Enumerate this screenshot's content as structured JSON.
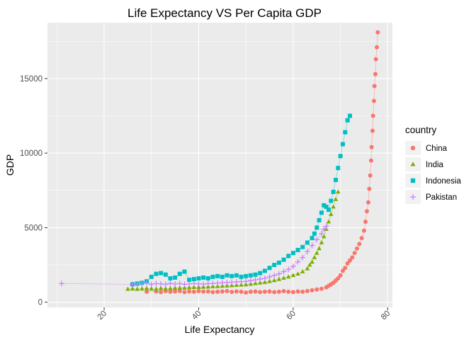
{
  "chart_data": {
    "type": "scatter",
    "title": "Life Expectancy VS Per Capita GDP",
    "xlabel": "Life Expectancy",
    "ylabel": "GDP",
    "xlim": [
      8,
      81
    ],
    "ylim": [
      -350,
      18750
    ],
    "x_ticks": [
      20,
      40,
      60,
      80
    ],
    "y_ticks": [
      0,
      5000,
      10000,
      15000
    ],
    "grid": true,
    "legend": {
      "title": "country",
      "position": "right"
    },
    "series": [
      {
        "name": "China",
        "color": "#F8766D",
        "shape": "circle",
        "points": [
          [
            29,
            700
          ],
          [
            31,
            720
          ],
          [
            32,
            680
          ],
          [
            33,
            740
          ],
          [
            34,
            700
          ],
          [
            35,
            720
          ],
          [
            36,
            750
          ],
          [
            37,
            680
          ],
          [
            38,
            720
          ],
          [
            39,
            700
          ],
          [
            40,
            740
          ],
          [
            41,
            710
          ],
          [
            42,
            720
          ],
          [
            43,
            680
          ],
          [
            44,
            700
          ],
          [
            45,
            720
          ],
          [
            46,
            750
          ],
          [
            47,
            690
          ],
          [
            48,
            720
          ],
          [
            49,
            700
          ],
          [
            50,
            650
          ],
          [
            51,
            700
          ],
          [
            52,
            720
          ],
          [
            53,
            680
          ],
          [
            54,
            700
          ],
          [
            55,
            720
          ],
          [
            56,
            680
          ],
          [
            57,
            700
          ],
          [
            58,
            740
          ],
          [
            59,
            700
          ],
          [
            60,
            680
          ],
          [
            61,
            720
          ],
          [
            62,
            700
          ],
          [
            63,
            750
          ],
          [
            64,
            800
          ],
          [
            65,
            850
          ],
          [
            66,
            900
          ],
          [
            67,
            1000
          ],
          [
            67.5,
            1100
          ],
          [
            68,
            1200
          ],
          [
            68.5,
            1300
          ],
          [
            69,
            1450
          ],
          [
            69.5,
            1600
          ],
          [
            70,
            1800
          ],
          [
            70.5,
            2100
          ],
          [
            71,
            2300
          ],
          [
            71.5,
            2600
          ],
          [
            72,
            2800
          ],
          [
            72.5,
            3000
          ],
          [
            73,
            3300
          ],
          [
            73.5,
            3600
          ],
          [
            74,
            3900
          ],
          [
            74.5,
            4300
          ],
          [
            75,
            4800
          ],
          [
            75.3,
            5400
          ],
          [
            75.6,
            6100
          ],
          [
            75.9,
            6700
          ],
          [
            76.1,
            7600
          ],
          [
            76.3,
            8500
          ],
          [
            76.5,
            9500
          ],
          [
            76.6,
            10400
          ],
          [
            76.8,
            11500
          ],
          [
            76.9,
            12500
          ],
          [
            77.1,
            13500
          ],
          [
            77.2,
            14500
          ],
          [
            77.4,
            15300
          ],
          [
            77.5,
            16300
          ],
          [
            77.7,
            17100
          ],
          [
            77.9,
            18100
          ]
        ]
      },
      {
        "name": "India",
        "color": "#7CAE00",
        "shape": "triangle",
        "points": [
          [
            25,
            880
          ],
          [
            26,
            900
          ],
          [
            27,
            880
          ],
          [
            28,
            900
          ],
          [
            29,
            920
          ],
          [
            30,
            900
          ],
          [
            31,
            880
          ],
          [
            32,
            930
          ],
          [
            33,
            900
          ],
          [
            34,
            920
          ],
          [
            35,
            940
          ],
          [
            36,
            950
          ],
          [
            37,
            960
          ],
          [
            38,
            980
          ],
          [
            39,
            1000
          ],
          [
            40,
            1000
          ],
          [
            41,
            1020
          ],
          [
            42,
            1030
          ],
          [
            43,
            1050
          ],
          [
            44,
            1060
          ],
          [
            45,
            1080
          ],
          [
            46,
            1100
          ],
          [
            47,
            1120
          ],
          [
            48,
            1140
          ],
          [
            49,
            1160
          ],
          [
            50,
            1180
          ],
          [
            51,
            1220
          ],
          [
            52,
            1260
          ],
          [
            53,
            1300
          ],
          [
            54,
            1340
          ],
          [
            55,
            1400
          ],
          [
            56,
            1460
          ],
          [
            57,
            1540
          ],
          [
            58,
            1620
          ],
          [
            59,
            1700
          ],
          [
            60,
            1800
          ],
          [
            61,
            1900
          ],
          [
            62,
            2050
          ],
          [
            63,
            2250
          ],
          [
            63.5,
            2500
          ],
          [
            64,
            2700
          ],
          [
            64.5,
            3000
          ],
          [
            65,
            3300
          ],
          [
            65.5,
            3600
          ],
          [
            66,
            4000
          ],
          [
            66.5,
            4400
          ],
          [
            67,
            4900
          ],
          [
            67.5,
            5400
          ],
          [
            68,
            5900
          ],
          [
            68.5,
            6400
          ],
          [
            69,
            6900
          ],
          [
            69.5,
            7400
          ]
        ]
      },
      {
        "name": "Indonesia",
        "color": "#00BFC4",
        "shape": "square",
        "points": [
          [
            26,
            1200
          ],
          [
            27,
            1250
          ],
          [
            28,
            1300
          ],
          [
            29,
            1400
          ],
          [
            30,
            1700
          ],
          [
            31,
            1900
          ],
          [
            32,
            1950
          ],
          [
            33,
            1850
          ],
          [
            34,
            1600
          ],
          [
            35,
            1650
          ],
          [
            36,
            1900
          ],
          [
            37,
            2050
          ],
          [
            38,
            1500
          ],
          [
            39,
            1550
          ],
          [
            40,
            1600
          ],
          [
            41,
            1650
          ],
          [
            42,
            1600
          ],
          [
            43,
            1700
          ],
          [
            44,
            1750
          ],
          [
            45,
            1700
          ],
          [
            46,
            1800
          ],
          [
            47,
            1750
          ],
          [
            48,
            1800
          ],
          [
            49,
            1700
          ],
          [
            50,
            1750
          ],
          [
            51,
            1800
          ],
          [
            52,
            1850
          ],
          [
            53,
            1950
          ],
          [
            54,
            2100
          ],
          [
            55,
            2300
          ],
          [
            56,
            2500
          ],
          [
            57,
            2650
          ],
          [
            58,
            2850
          ],
          [
            59,
            3100
          ],
          [
            60,
            3300
          ],
          [
            61,
            3500
          ],
          [
            62,
            3700
          ],
          [
            63,
            4000
          ],
          [
            64,
            4300
          ],
          [
            64.5,
            4600
          ],
          [
            65,
            5000
          ],
          [
            65.5,
            5500
          ],
          [
            66,
            6000
          ],
          [
            66.5,
            6500
          ],
          [
            67,
            6400
          ],
          [
            67.5,
            6200
          ],
          [
            68,
            6800
          ],
          [
            68.5,
            7400
          ],
          [
            69,
            8200
          ],
          [
            69.5,
            9000
          ],
          [
            70,
            9800
          ],
          [
            70.5,
            10600
          ],
          [
            71,
            11400
          ],
          [
            71.5,
            12200
          ],
          [
            72,
            12500
          ]
        ]
      },
      {
        "name": "Pakistan",
        "color": "#C77CFF",
        "shape": "plus",
        "points": [
          [
            11,
            1250
          ],
          [
            26,
            1200
          ],
          [
            27,
            1220
          ],
          [
            28,
            1250
          ],
          [
            29,
            1280
          ],
          [
            30,
            1200
          ],
          [
            31,
            1250
          ],
          [
            32,
            1230
          ],
          [
            33,
            1200
          ],
          [
            34,
            1260
          ],
          [
            35,
            1220
          ],
          [
            36,
            1250
          ],
          [
            37,
            1200
          ],
          [
            38,
            1220
          ],
          [
            39,
            1250
          ],
          [
            40,
            1230
          ],
          [
            41,
            1210
          ],
          [
            42,
            1250
          ],
          [
            43,
            1260
          ],
          [
            44,
            1280
          ],
          [
            45,
            1300
          ],
          [
            46,
            1320
          ],
          [
            47,
            1340
          ],
          [
            48,
            1360
          ],
          [
            49,
            1380
          ],
          [
            50,
            1400
          ],
          [
            51,
            1450
          ],
          [
            52,
            1500
          ],
          [
            53,
            1550
          ],
          [
            54,
            1600
          ],
          [
            55,
            1700
          ],
          [
            56,
            1800
          ],
          [
            57,
            1900
          ],
          [
            58,
            2050
          ],
          [
            59,
            2200
          ],
          [
            60,
            2400
          ],
          [
            61,
            2700
          ],
          [
            62,
            3000
          ],
          [
            63,
            3400
          ],
          [
            64,
            3800
          ],
          [
            65,
            4200
          ],
          [
            66,
            4600
          ],
          [
            66.5,
            4900
          ],
          [
            67,
            5100
          ]
        ]
      }
    ]
  }
}
